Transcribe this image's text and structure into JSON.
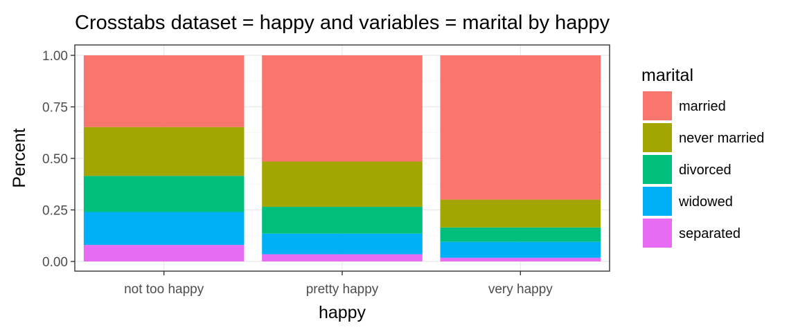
{
  "chart_data": {
    "type": "bar",
    "stacked": true,
    "title": "Crosstabs dataset = happy and variables = marital by happy",
    "xlabel": "happy",
    "ylabel": "Percent",
    "ylim": [
      0,
      1
    ],
    "yticks": [
      "0.00",
      "0.25",
      "0.50",
      "0.75",
      "1.00"
    ],
    "categories": [
      "not too happy",
      "pretty happy",
      "very happy"
    ],
    "legend_title": "marital",
    "legend_position": "right",
    "grid": true,
    "series": [
      {
        "name": "married",
        "color": "#F8766D",
        "values": [
          0.348,
          0.515,
          0.7
        ]
      },
      {
        "name": "never married",
        "color": "#A3A500",
        "values": [
          0.237,
          0.22,
          0.135
        ]
      },
      {
        "name": "divorced",
        "color": "#00BF7D",
        "values": [
          0.175,
          0.13,
          0.07
        ]
      },
      {
        "name": "widowed",
        "color": "#00B0F6",
        "values": [
          0.16,
          0.1,
          0.077
        ]
      },
      {
        "name": "separated",
        "color": "#E76BF3",
        "values": [
          0.08,
          0.035,
          0.018
        ]
      }
    ]
  }
}
